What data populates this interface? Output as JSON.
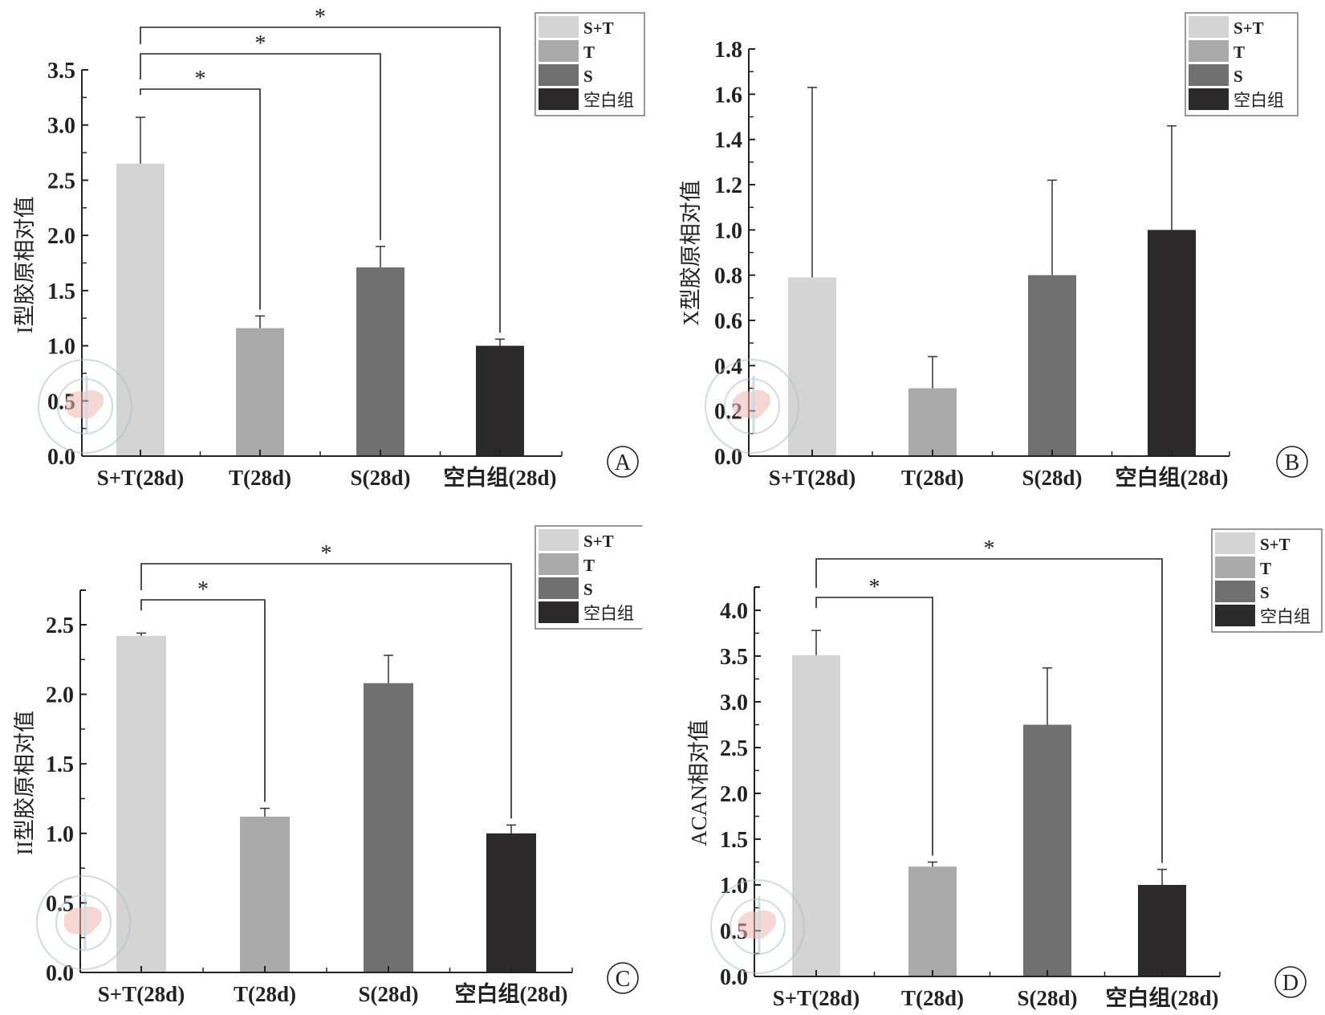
{
  "figure": {
    "legend_entries": [
      "S+T",
      "T",
      "S",
      "空白组"
    ],
    "group_colors": [
      "#d4d4d4",
      "#aaaaaa",
      "#717071",
      "#2d2a2b"
    ]
  },
  "chart_data": [
    {
      "type": "bar",
      "panel": "A",
      "panel_label": "Ⓐ",
      "title": "",
      "xlabel": "",
      "ylabel": "I型胶原相对值",
      "categories": [
        "S+T(28d)",
        "T(28d)",
        "S(28d)",
        "空白组(28d)"
      ],
      "values": [
        2.65,
        1.16,
        1.71,
        1.0
      ],
      "error": [
        0.42,
        0.11,
        0.19,
        0.06
      ],
      "ylim": [
        0,
        3.5
      ],
      "yticks": [
        0.0,
        0.5,
        1.0,
        1.5,
        2.0,
        2.5,
        3.0,
        3.5
      ],
      "ytick_labels": [
        "0.0",
        "0.5",
        "1.0",
        "1.5",
        "2.0",
        "2.5",
        "3.0",
        "3.5"
      ],
      "legend_position": "top-right",
      "grid": false,
      "significance": [
        {
          "from": 0,
          "to": 1,
          "label": "*"
        },
        {
          "from": 0,
          "to": 2,
          "label": "*"
        },
        {
          "from": 0,
          "to": 3,
          "label": "*"
        }
      ]
    },
    {
      "type": "bar",
      "panel": "B",
      "panel_label": "Ⓑ",
      "title": "",
      "xlabel": "",
      "ylabel": "X型胶原相对值",
      "categories": [
        "S+T(28d)",
        "T(28d)",
        "S(28d)",
        "空白组(28d)"
      ],
      "values": [
        0.79,
        0.3,
        0.8,
        1.0
      ],
      "error": [
        0.84,
        0.14,
        0.42,
        0.46
      ],
      "ylim": [
        0,
        1.8
      ],
      "yticks": [
        0.0,
        0.2,
        0.4,
        0.6,
        0.8,
        1.0,
        1.2,
        1.4,
        1.6,
        1.8
      ],
      "ytick_labels": [
        "0.0",
        "0.2",
        "0.4",
        "0.6",
        "0.8",
        "1.0",
        "1.2",
        "1.4",
        "1.6",
        "1.8"
      ],
      "legend_position": "top-right",
      "grid": false,
      "significance": []
    },
    {
      "type": "bar",
      "panel": "C",
      "panel_label": "Ⓒ",
      "title": "",
      "xlabel": "",
      "ylabel": "II型胶原相对值",
      "categories": [
        "S+T(28d)",
        "T(28d)",
        "S(28d)",
        "空白组(28d)"
      ],
      "values": [
        2.42,
        1.12,
        2.08,
        1.0
      ],
      "error": [
        0.02,
        0.06,
        0.2,
        0.06
      ],
      "ylim": [
        0,
        2.75
      ],
      "yticks": [
        0.0,
        0.5,
        1.0,
        1.5,
        2.0,
        2.5
      ],
      "ytick_labels": [
        "0.0",
        "0.5",
        "1.0",
        "1.5",
        "2.0",
        "2.5"
      ],
      "legend_position": "top-right",
      "grid": false,
      "significance": [
        {
          "from": 0,
          "to": 1,
          "label": "*"
        },
        {
          "from": 0,
          "to": 3,
          "label": "*"
        }
      ]
    },
    {
      "type": "bar",
      "panel": "D",
      "panel_label": "Ⓓ",
      "title": "",
      "xlabel": "",
      "ylabel": "ACAN相对值",
      "categories": [
        "S+T(28d)",
        "T(28d)",
        "S(28d)",
        "空白组(28d)"
      ],
      "values": [
        3.51,
        1.2,
        2.75,
        1.0
      ],
      "error": [
        0.27,
        0.05,
        0.62,
        0.17
      ],
      "ylim": [
        0,
        4.25
      ],
      "yticks": [
        0.0,
        0.5,
        1.0,
        1.5,
        2.0,
        2.5,
        3.0,
        3.5,
        4.0
      ],
      "ytick_labels": [
        "0.0",
        "0.5",
        "1.0",
        "1.5",
        "2.0",
        "2.5",
        "3.0",
        "3.5",
        "4.0"
      ],
      "legend_position": "top-right",
      "grid": false,
      "significance": [
        {
          "from": 0,
          "to": 1,
          "label": "*"
        },
        {
          "from": 0,
          "to": 3,
          "label": "*"
        }
      ]
    }
  ]
}
